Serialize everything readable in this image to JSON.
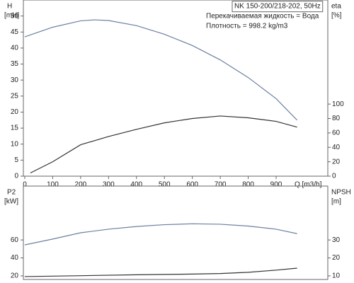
{
  "chart_data": [
    {
      "type": "line",
      "ylabel": "H",
      "yunit": "[mH]",
      "y2label": "eta",
      "y2unit": "[%]",
      "xlabel": "Q [m3/h]",
      "annotations": [
        "NK 150-200/218-202, 50Hz",
        "Перекачиваемая жидкость = Вода",
        "Плотность = 998.2 kg/m3"
      ],
      "xlim": [
        -5,
        1085
      ],
      "xticks": [
        0,
        100,
        200,
        300,
        400,
        500,
        600,
        700,
        800,
        900
      ],
      "ylim": [
        0,
        55
      ],
      "yticks": [
        0,
        5,
        10,
        15,
        20,
        25,
        30,
        35,
        40,
        45,
        50
      ],
      "y2lim": [
        0,
        244.4
      ],
      "y2ticks": [
        0,
        20,
        40,
        60,
        80,
        100
      ],
      "series": [
        {
          "color": "#6b7fa3",
          "x": [
            0,
            100,
            200,
            250,
            300,
            400,
            500,
            600,
            700,
            800,
            900,
            975
          ],
          "values": [
            43.5,
            46.5,
            48.5,
            48.8,
            48.6,
            47,
            44.3,
            40.8,
            36.3,
            30.8,
            24.2,
            17.5
          ]
        },
        {
          "color": "#333333",
          "axis": "y2",
          "x": [
            20,
            100,
            200,
            300,
            400,
            500,
            600,
            700,
            800,
            900,
            975
          ],
          "values": [
            4.4,
            20,
            43.6,
            55,
            65,
            74,
            80,
            83.5,
            81,
            76,
            68
          ]
        }
      ]
    },
    {
      "type": "line",
      "ylabel": "P2",
      "yunit": "[kW]",
      "y2label": "NPSH",
      "y2unit": "[m]",
      "xlim": [
        -5,
        1085
      ],
      "ylim": [
        16,
        120
      ],
      "yticks": [
        20,
        40,
        60
      ],
      "y2lim": [
        8,
        60
      ],
      "y2ticks": [
        10,
        20,
        30
      ],
      "series": [
        {
          "color": "#6b7fa3",
          "x": [
            0,
            100,
            200,
            300,
            400,
            500,
            600,
            700,
            800,
            900,
            975
          ],
          "values": [
            54.5,
            61,
            68,
            72,
            75,
            77,
            78,
            77.5,
            75.5,
            72,
            67
          ]
        },
        {
          "color": "#333333",
          "axis": "y2",
          "x": [
            0,
            200,
            400,
            500,
            600,
            700,
            800,
            900,
            975
          ],
          "values": [
            9.6,
            10.1,
            10.6,
            10.8,
            11,
            11.3,
            12,
            13.2,
            14.3
          ]
        }
      ]
    }
  ]
}
